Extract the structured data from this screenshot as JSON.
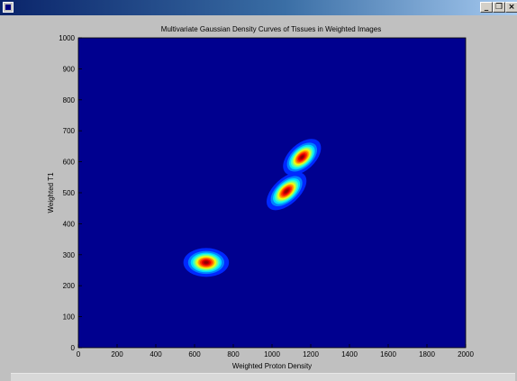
{
  "window": {
    "minimize_glyph": "_",
    "maximize_glyph": "❐",
    "close_glyph": "×"
  },
  "chart_data": {
    "type": "heatmap",
    "title": "Multivariate Gaussian Density Curves of Tissues in Weighted Images",
    "xlabel": "Weighted Proton Density",
    "ylabel": "Weighted T1",
    "xlim": [
      0,
      2000
    ],
    "ylim": [
      0,
      1000
    ],
    "xticks": [
      0,
      200,
      400,
      600,
      800,
      1000,
      1200,
      1400,
      1600,
      1800,
      2000
    ],
    "yticks": [
      0,
      100,
      200,
      300,
      400,
      500,
      600,
      700,
      800,
      900,
      1000
    ],
    "colormap": "jet",
    "background_color": "#00008f",
    "grid": false,
    "gaussians": [
      {
        "mean_x": 660,
        "mean_y": 275,
        "sigma_x": 48,
        "sigma_y": 19,
        "correlation": 0.0
      },
      {
        "mean_x": 1075,
        "mean_y": 505,
        "sigma_x": 42,
        "sigma_y": 25,
        "correlation": 0.55
      },
      {
        "mean_x": 1155,
        "mean_y": 615,
        "sigma_x": 40,
        "sigma_y": 24,
        "correlation": 0.5
      }
    ]
  }
}
